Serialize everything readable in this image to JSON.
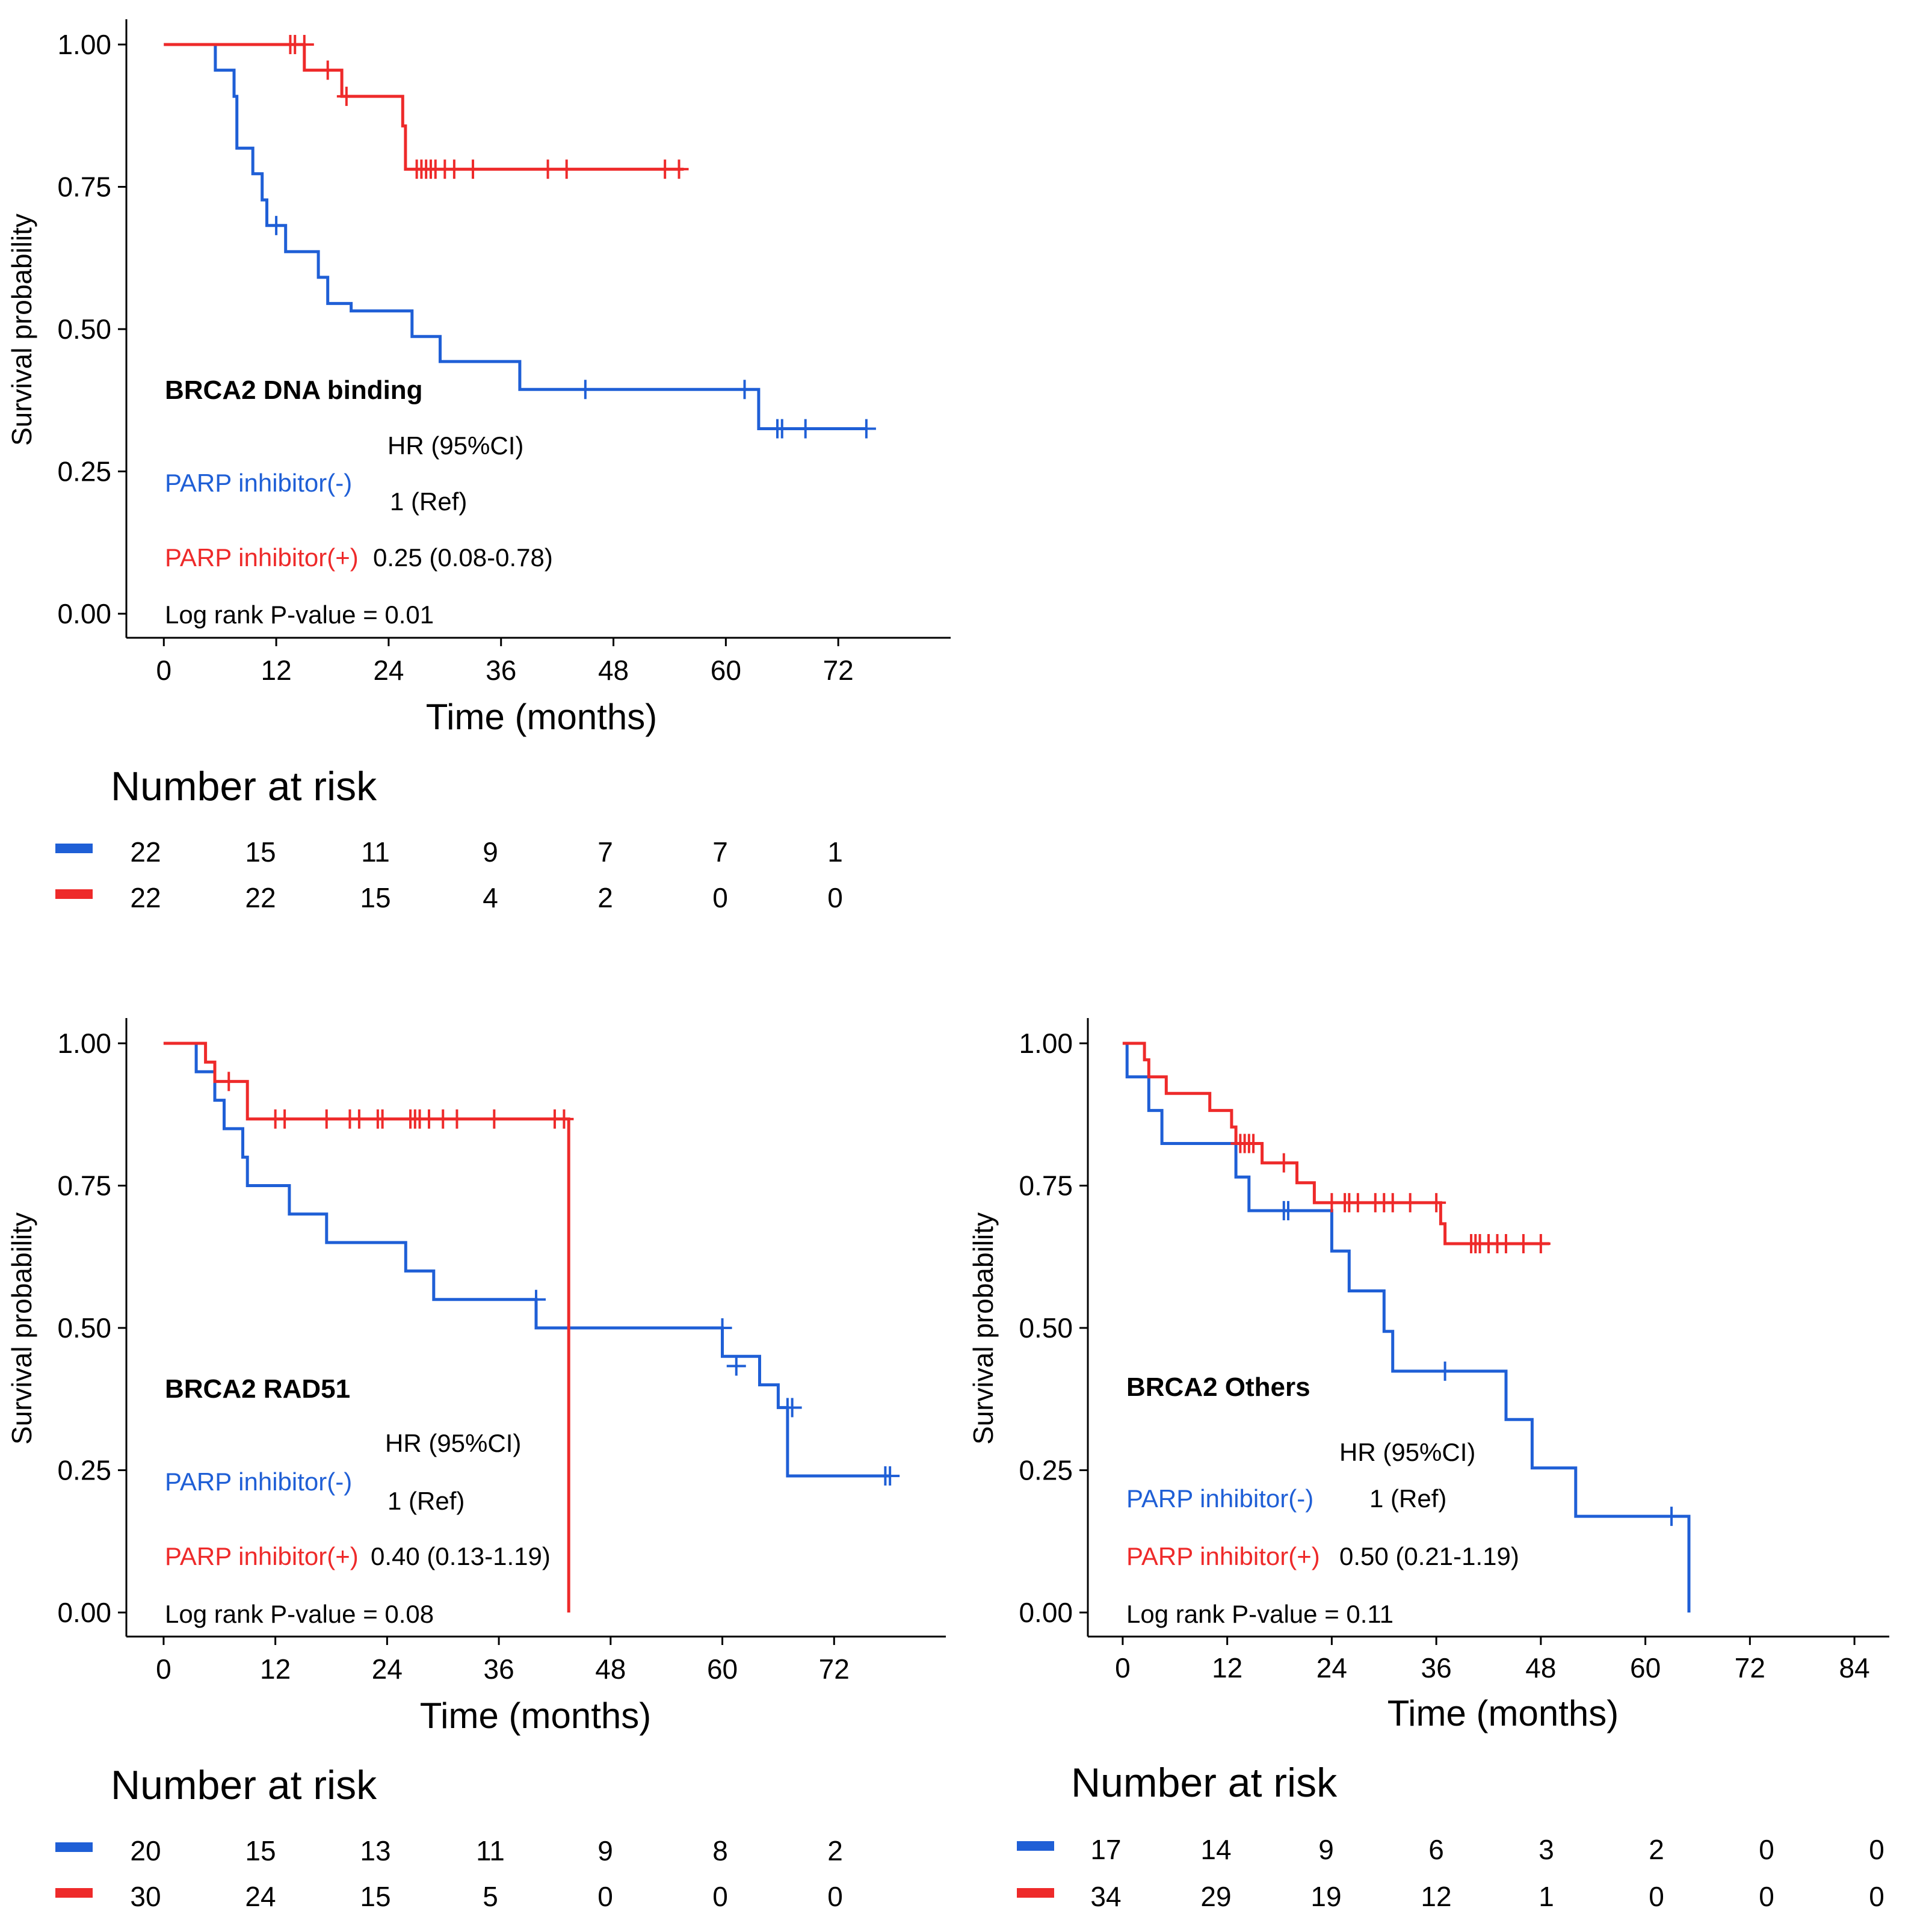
{
  "colors": {
    "negative": "#1f5fd6",
    "positive": "#ee2a2a",
    "axis": "#000000",
    "text": "#000000"
  },
  "chart_data": [
    {
      "type": "line",
      "subtype": "kaplan-meier",
      "title": "BRCA2 DNA binding",
      "xlabel": "Time (months)",
      "ylabel": "Survival probability",
      "xlim": [
        -4,
        84
      ],
      "ylim": [
        0,
        1
      ],
      "x_ticks": [
        "0",
        "12",
        "24",
        "36",
        "48",
        "60",
        "72"
      ],
      "y_ticks": [
        "0.00",
        "0.25",
        "0.50",
        "0.75",
        "1.00"
      ],
      "grid": false,
      "series": [
        {
          "name": "PARP inhibitor(-)",
          "color": "#1f5fd6",
          "steps": [
            [
              0,
              1.0
            ],
            [
              5.5,
              0.955
            ],
            [
              7.5,
              0.909
            ],
            [
              7.8,
              0.818
            ],
            [
              9.5,
              0.773
            ],
            [
              10.5,
              0.727
            ],
            [
              11,
              0.682
            ],
            [
              13,
              0.636
            ],
            [
              16.5,
              0.591
            ],
            [
              17.5,
              0.545
            ],
            [
              20,
              0.532
            ],
            [
              26.5,
              0.487
            ],
            [
              29.5,
              0.443
            ],
            [
              38,
              0.394
            ],
            [
              63.5,
              0.325
            ],
            [
              75,
              0.325
            ]
          ],
          "censored": [
            [
              12,
              0.682
            ],
            [
              45,
              0.394
            ],
            [
              62,
              0.394
            ],
            [
              65.5,
              0.325
            ],
            [
              66,
              0.325
            ],
            [
              68.5,
              0.325
            ],
            [
              75,
              0.325
            ]
          ]
        },
        {
          "name": "PARP inhibitor(+)",
          "color": "#ee2a2a",
          "steps": [
            [
              0,
              1.0
            ],
            [
              15,
              0.955
            ],
            [
              19,
              0.909
            ],
            [
              25.5,
              0.857
            ],
            [
              25.8,
              0.781
            ],
            [
              55.5,
              0.781
            ]
          ],
          "censored": [
            [
              13.5,
              1.0
            ],
            [
              14,
              1.0
            ],
            [
              15,
              1.0
            ],
            [
              17.5,
              0.955
            ],
            [
              19.5,
              0.909
            ],
            [
              27,
              0.781
            ],
            [
              27.5,
              0.781
            ],
            [
              28,
              0.781
            ],
            [
              28.5,
              0.781
            ],
            [
              29,
              0.781
            ],
            [
              30,
              0.781
            ],
            [
              31,
              0.781
            ],
            [
              33,
              0.781
            ],
            [
              41,
              0.781
            ],
            [
              43,
              0.781
            ],
            [
              53.5,
              0.781
            ],
            [
              55,
              0.781
            ]
          ]
        }
      ],
      "annotations": {
        "hr_header": "HR (95%CI)",
        "neg_label": "PARP inhibitor(-)",
        "neg_hr": "1 (Ref)",
        "pos_label": "PARP inhibitor(+)",
        "pos_hr": "0.25 (0.08-0.78)",
        "pvalue": "Log rank P-value = 0.01"
      },
      "risk_table": {
        "title": "Number at risk",
        "negative": [
          "22",
          "15",
          "11",
          "9",
          "7",
          "7",
          "1"
        ],
        "positive": [
          "22",
          "22",
          "15",
          "4",
          "2",
          "0",
          "0"
        ]
      }
    },
    {
      "type": "line",
      "subtype": "kaplan-meier",
      "title": "BRCA2 RAD51",
      "xlabel": "Time (months)",
      "ylabel": "Survival probability",
      "xlim": [
        -4,
        84
      ],
      "ylim": [
        0,
        1
      ],
      "x_ticks": [
        "0",
        "12",
        "24",
        "36",
        "48",
        "60",
        "72"
      ],
      "y_ticks": [
        "0.00",
        "0.25",
        "0.50",
        "0.75",
        "1.00"
      ],
      "grid": false,
      "series": [
        {
          "name": "PARP inhibitor(-)",
          "color": "#1f5fd6",
          "steps": [
            [
              0,
              1.0
            ],
            [
              3.5,
              0.95
            ],
            [
              5.5,
              0.9
            ],
            [
              6.5,
              0.85
            ],
            [
              8.5,
              0.8
            ],
            [
              9,
              0.75
            ],
            [
              13.5,
              0.7
            ],
            [
              17.5,
              0.65
            ],
            [
              26,
              0.6
            ],
            [
              29,
              0.55
            ],
            [
              40,
              0.5
            ],
            [
              60,
              0.45
            ],
            [
              64,
              0.4
            ],
            [
              66,
              0.36
            ],
            [
              67,
              0.24
            ],
            [
              78,
              0.24
            ]
          ],
          "censored": [
            [
              40,
              0.55
            ],
            [
              60,
              0.5
            ],
            [
              61.5,
              0.433
            ],
            [
              67,
              0.36
            ],
            [
              67.5,
              0.36
            ],
            [
              77.5,
              0.24
            ],
            [
              78,
              0.24
            ]
          ]
        },
        {
          "name": "PARP inhibitor(+)",
          "color": "#ee2a2a",
          "steps": [
            [
              0,
              1.0
            ],
            [
              4.5,
              0.967
            ],
            [
              5.5,
              0.933
            ],
            [
              9,
              0.867
            ],
            [
              43.5,
              0.0
            ]
          ],
          "censored": [
            [
              7,
              0.933
            ],
            [
              12,
              0.867
            ],
            [
              13,
              0.867
            ],
            [
              17.5,
              0.867
            ],
            [
              20,
              0.867
            ],
            [
              21,
              0.867
            ],
            [
              23,
              0.867
            ],
            [
              23.5,
              0.867
            ],
            [
              26.5,
              0.867
            ],
            [
              27,
              0.867
            ],
            [
              27.5,
              0.867
            ],
            [
              28.5,
              0.867
            ],
            [
              30,
              0.867
            ],
            [
              31.5,
              0.867
            ],
            [
              35.5,
              0.867
            ],
            [
              42,
              0.867
            ],
            [
              43,
              0.867
            ]
          ]
        }
      ],
      "annotations": {
        "hr_header": "HR (95%CI)",
        "neg_label": "PARP inhibitor(-)",
        "neg_hr": "1 (Ref)",
        "pos_label": "PARP inhibitor(+)",
        "pos_hr": "0.40 (0.13-1.19)",
        "pvalue": "Log rank P-value = 0.08"
      },
      "risk_table": {
        "title": "Number at risk",
        "negative": [
          "20",
          "15",
          "13",
          "11",
          "9",
          "8",
          "2"
        ],
        "positive": [
          "30",
          "24",
          "15",
          "5",
          "0",
          "0",
          "0"
        ]
      }
    },
    {
      "type": "line",
      "subtype": "kaplan-meier",
      "title": "BRCA2 Others",
      "xlabel": "Time (months)",
      "ylabel": "Survival probability",
      "xlim": [
        -4,
        88
      ],
      "ylim": [
        0,
        1
      ],
      "x_ticks": [
        "0",
        "12",
        "24",
        "36",
        "48",
        "60",
        "72",
        "84"
      ],
      "y_ticks": [
        "0.00",
        "0.25",
        "0.50",
        "0.75",
        "1.00"
      ],
      "grid": false,
      "series": [
        {
          "name": "PARP inhibitor(-)",
          "color": "#1f5fd6",
          "steps": [
            [
              0,
              1.0
            ],
            [
              0.5,
              0.941
            ],
            [
              3,
              0.882
            ],
            [
              4.5,
              0.824
            ],
            [
              13,
              0.765
            ],
            [
              14.5,
              0.706
            ],
            [
              24,
              0.635
            ],
            [
              26,
              0.565
            ],
            [
              30,
              0.494
            ],
            [
              31,
              0.424
            ],
            [
              44,
              0.339
            ],
            [
              47,
              0.254
            ],
            [
              52,
              0.169
            ],
            [
              65,
              0.0
            ]
          ],
          "censored": [
            [
              18.5,
              0.706
            ],
            [
              19,
              0.706
            ],
            [
              37,
              0.424
            ],
            [
              63,
              0.169
            ]
          ]
        },
        {
          "name": "PARP inhibitor(+)",
          "color": "#ee2a2a",
          "steps": [
            [
              0,
              1.0
            ],
            [
              2.5,
              0.971
            ],
            [
              3,
              0.941
            ],
            [
              5,
              0.912
            ],
            [
              10,
              0.882
            ],
            [
              12.5,
              0.853
            ],
            [
              13,
              0.824
            ],
            [
              16,
              0.79
            ],
            [
              20,
              0.755
            ],
            [
              22,
              0.72
            ],
            [
              36.5,
              0.683
            ],
            [
              37,
              0.648
            ],
            [
              49,
              0.648
            ]
          ],
          "censored": [
            [
              13.5,
              0.824
            ],
            [
              14,
              0.824
            ],
            [
              14.5,
              0.824
            ],
            [
              15,
              0.824
            ],
            [
              18.5,
              0.79
            ],
            [
              24,
              0.72
            ],
            [
              25.5,
              0.72
            ],
            [
              26,
              0.72
            ],
            [
              27,
              0.72
            ],
            [
              29,
              0.72
            ],
            [
              30,
              0.72
            ],
            [
              31,
              0.72
            ],
            [
              33,
              0.72
            ],
            [
              36,
              0.72
            ],
            [
              40,
              0.648
            ],
            [
              40.5,
              0.648
            ],
            [
              41,
              0.648
            ],
            [
              42,
              0.648
            ],
            [
              43,
              0.648
            ],
            [
              44,
              0.648
            ],
            [
              46,
              0.648
            ],
            [
              48,
              0.648
            ]
          ]
        }
      ],
      "annotations": {
        "hr_header": "HR (95%CI)",
        "neg_label": "PARP inhibitor(-)",
        "neg_hr": "1 (Ref)",
        "pos_label": "PARP inhibitor(+)",
        "pos_hr": "0.50 (0.21-1.19)",
        "pvalue": "Log rank P-value = 0.11"
      },
      "risk_table": {
        "title": "Number at risk",
        "negative": [
          "17",
          "14",
          "9",
          "6",
          "3",
          "2",
          "0",
          "0"
        ],
        "positive": [
          "34",
          "29",
          "19",
          "12",
          "1",
          "0",
          "0",
          "0"
        ]
      }
    }
  ]
}
